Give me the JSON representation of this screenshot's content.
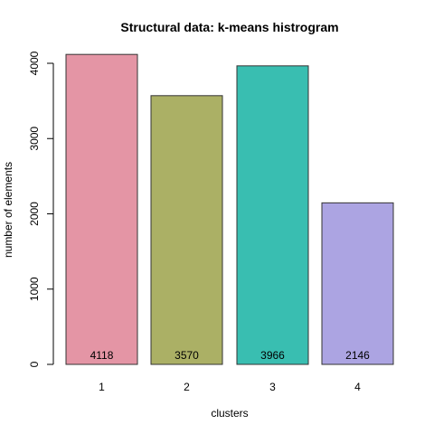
{
  "chart_data": {
    "type": "bar",
    "title": "Structural data: k-means histrogram",
    "xlabel": "clusters",
    "ylabel": "number of elements",
    "categories": [
      "1",
      "2",
      "3",
      "4"
    ],
    "values": [
      4118,
      3570,
      3966,
      2146
    ],
    "data_labels": [
      "4118",
      "3570",
      "3966",
      "2146"
    ],
    "colors": [
      "#e495a5",
      "#abb065",
      "#39beb1",
      "#aca4e2"
    ],
    "ylim": [
      0,
      4200
    ],
    "yticks": [
      0,
      1000,
      2000,
      3000,
      4000
    ],
    "ytick_labels": [
      "0",
      "1000",
      "2000",
      "3000",
      "4000"
    ],
    "grid": false,
    "legend": "none"
  }
}
